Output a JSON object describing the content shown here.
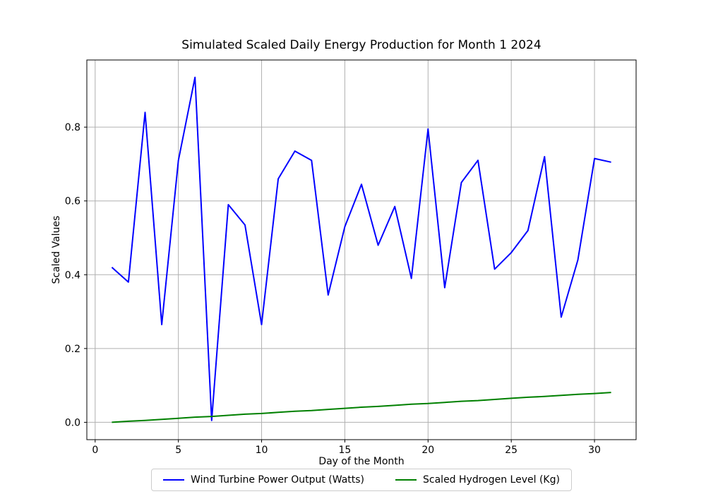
{
  "chart_data": {
    "type": "line",
    "title": "Simulated Scaled Daily Energy Production for Month 1 2024",
    "xlabel": "Day of the Month",
    "ylabel": "Scaled Values",
    "grid": true,
    "grid_color": "#b0b0b0",
    "background_color": "#ffffff",
    "legend_position": "bottom-center",
    "xlim": [
      -0.5,
      32.5
    ],
    "ylim": [
      -0.047,
      0.982
    ],
    "xticks": [
      0,
      5,
      10,
      15,
      20,
      25,
      30
    ],
    "yticks": [
      0.0,
      0.2,
      0.4,
      0.6,
      0.8
    ],
    "x": [
      1,
      2,
      3,
      4,
      5,
      6,
      7,
      8,
      9,
      10,
      11,
      12,
      13,
      14,
      15,
      16,
      17,
      18,
      19,
      20,
      21,
      22,
      23,
      24,
      25,
      26,
      27,
      28,
      29,
      30,
      31
    ],
    "series": [
      {
        "name": "Wind Turbine Power Output (Watts)",
        "slug": "wind-turbine-power-line",
        "color": "#0000ff",
        "values": [
          0.42,
          0.38,
          0.84,
          0.265,
          0.71,
          0.935,
          0.005,
          0.59,
          0.535,
          0.265,
          0.66,
          0.735,
          0.71,
          0.345,
          0.53,
          0.645,
          0.48,
          0.585,
          0.39,
          0.795,
          0.365,
          0.65,
          0.71,
          0.415,
          0.46,
          0.52,
          0.72,
          0.285,
          0.44,
          0.715,
          0.705
        ]
      },
      {
        "name": "Scaled Hydrogen Level (Kg)",
        "slug": "hydrogen-level-line",
        "color": "#008000",
        "values": [
          0.0,
          0.003,
          0.005,
          0.008,
          0.011,
          0.014,
          0.016,
          0.019,
          0.022,
          0.024,
          0.027,
          0.03,
          0.032,
          0.035,
          0.038,
          0.041,
          0.043,
          0.046,
          0.049,
          0.051,
          0.054,
          0.057,
          0.059,
          0.062,
          0.065,
          0.068,
          0.07,
          0.073,
          0.076,
          0.078,
          0.081
        ]
      }
    ]
  }
}
